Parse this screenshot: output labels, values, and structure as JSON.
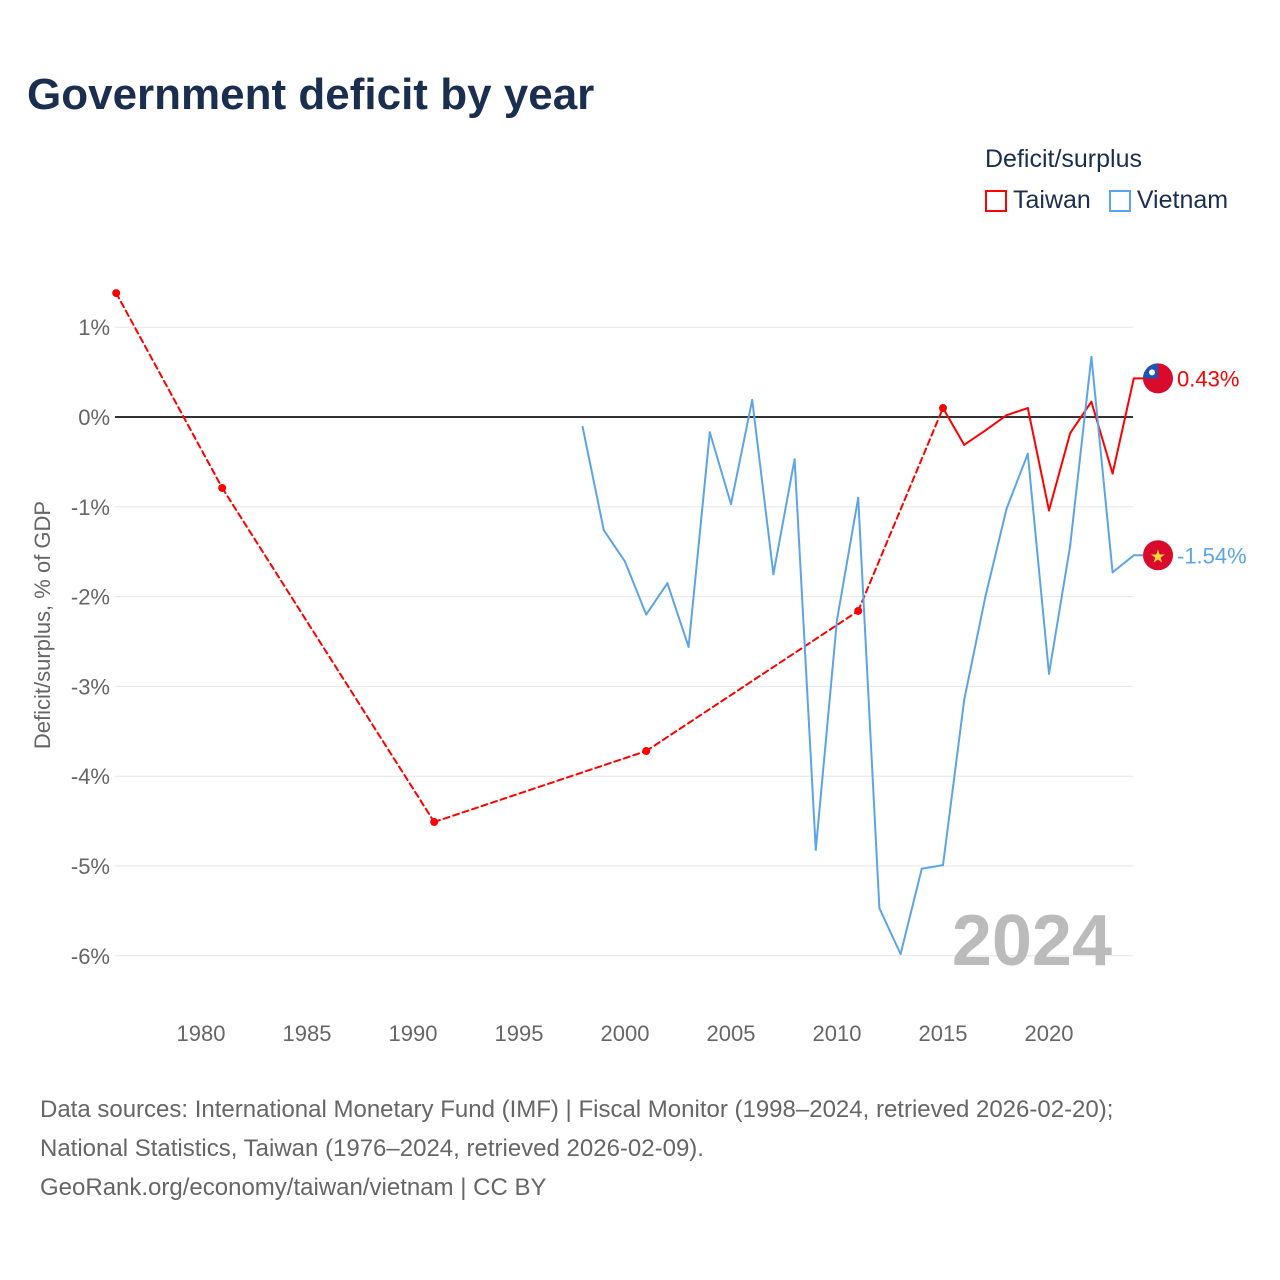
{
  "title": "Government deficit by year",
  "legend": {
    "title": "Deficit/surplus",
    "items": [
      {
        "name": "Taiwan",
        "color": "#ff0000"
      },
      {
        "name": "Vietnam",
        "color": "#5ba4ea"
      }
    ]
  },
  "chart_data": {
    "type": "line",
    "title": "Government deficit by year",
    "ylabel": "Deficit/surplus, % of GDP",
    "xlabel": "",
    "ylim": [
      -6,
      1
    ],
    "xlim": [
      1976,
      2024
    ],
    "yticks": [
      "1%",
      "0%",
      "-1%",
      "-2%",
      "-3%",
      "-4%",
      "-5%",
      "-6%"
    ],
    "ytick_values": [
      1,
      0,
      -1,
      -2,
      -3,
      -4,
      -5,
      -6
    ],
    "xticks": [
      "1980",
      "1985",
      "1990",
      "1995",
      "2000",
      "2005",
      "2010",
      "2015",
      "2020"
    ],
    "grid": true,
    "legend_position": "top-right",
    "year_watermark": "2024",
    "series": [
      {
        "name": "Taiwan",
        "color": "#ff0000",
        "end_label": "0.43%",
        "x": [
          1976,
          1981,
          1991,
          2001,
          2011,
          2015,
          2016,
          2017,
          2018,
          2019,
          2020,
          2021,
          2022,
          2023,
          2024
        ],
        "y": [
          1.38,
          -0.79,
          -4.51,
          -3.72,
          -2.16,
          0.1,
          -0.31,
          -0.15,
          0.02,
          0.1,
          -1.04,
          -0.18,
          0.17,
          -0.63,
          0.43
        ]
      },
      {
        "name": "Vietnam",
        "color": "#5ba4ea",
        "end_label": "-1.54%",
        "x": [
          1998,
          1999,
          2000,
          2001,
          2002,
          2003,
          2004,
          2005,
          2006,
          2007,
          2008,
          2009,
          2010,
          2011,
          2012,
          2013,
          2014,
          2015,
          2016,
          2017,
          2018,
          2019,
          2020,
          2021,
          2022,
          2023,
          2024
        ],
        "y": [
          -0.11,
          -1.26,
          -1.61,
          -2.2,
          -1.85,
          -2.56,
          -0.17,
          -0.97,
          0.19,
          -1.75,
          -0.47,
          -4.82,
          -2.26,
          -0.9,
          -5.47,
          -5.98,
          -5.03,
          -4.99,
          -3.15,
          -2.0,
          -1.02,
          -0.41,
          -2.86,
          -1.43,
          0.67,
          -1.73,
          -1.54
        ]
      }
    ]
  },
  "source": {
    "line1": "Data sources: International Monetary Fund (IMF) | Fiscal Monitor (1998–2024, retrieved 2026-02-20);",
    "line2": "National Statistics, Taiwan (1976–2024, retrieved 2026-02-09).",
    "line3": "GeoRank.org/economy/taiwan/vietnam | CC BY"
  }
}
